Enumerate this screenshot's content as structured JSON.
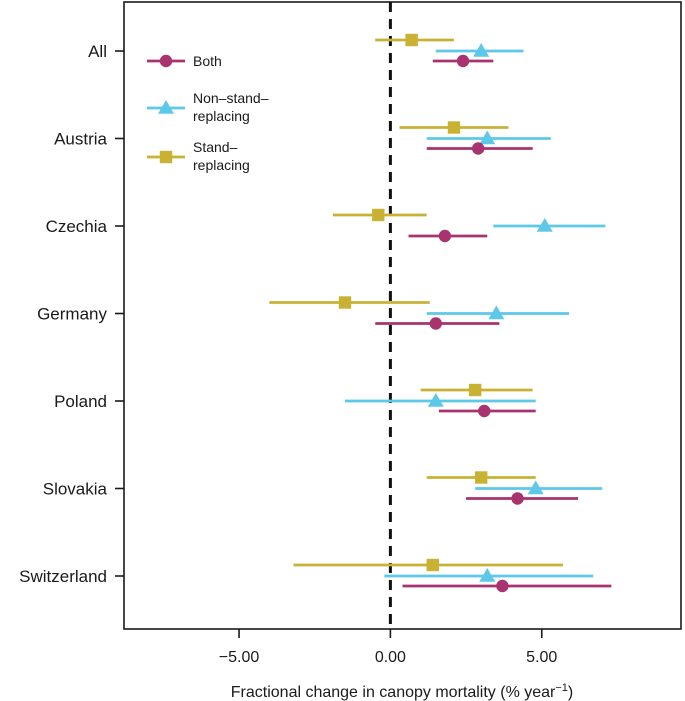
{
  "chart_data": {
    "type": "scatter",
    "subtype": "forest-plot-errorbars",
    "xlabel": "Fractional change in canopy mortality (% year−1)",
    "xlabel_main": "Fractional change in canopy mortality (% year",
    "xlabel_sup": "−1",
    "xlabel_close": ")",
    "xlim": [
      -8.8,
      9.6
    ],
    "xticks": [
      -5,
      0,
      5
    ],
    "xtick_labels": [
      "−5.00",
      "0.00",
      "5.00"
    ],
    "reference_line": 0,
    "categories": [
      "All",
      "Austria",
      "Czechia",
      "Germany",
      "Poland",
      "Slovakia",
      "Switzerland"
    ],
    "legend_position": "top-left",
    "series": [
      {
        "name": "Both",
        "color": "#a8336e",
        "marker": "circle",
        "points": [
          {
            "est": 2.4,
            "lo": 1.4,
            "hi": 3.4
          },
          {
            "est": 2.9,
            "lo": 1.2,
            "hi": 4.7
          },
          {
            "est": 1.8,
            "lo": 0.6,
            "hi": 3.2
          },
          {
            "est": 1.5,
            "lo": -0.5,
            "hi": 3.6
          },
          {
            "est": 3.1,
            "lo": 1.6,
            "hi": 4.8
          },
          {
            "est": 4.2,
            "lo": 2.5,
            "hi": 6.2
          },
          {
            "est": 3.7,
            "lo": 0.4,
            "hi": 7.3
          }
        ]
      },
      {
        "name": "Non–stand–replacing",
        "legend_lines": [
          "Non–stand–",
          "replacing"
        ],
        "color": "#5ec8e8",
        "marker": "triangle",
        "points": [
          {
            "est": 3.0,
            "lo": 1.5,
            "hi": 4.4
          },
          {
            "est": 3.2,
            "lo": 1.2,
            "hi": 5.3
          },
          {
            "est": 5.1,
            "lo": 3.4,
            "hi": 7.1
          },
          {
            "est": 3.5,
            "lo": 1.2,
            "hi": 5.9
          },
          {
            "est": 1.5,
            "lo": -1.5,
            "hi": 4.8
          },
          {
            "est": 4.8,
            "lo": 2.8,
            "hi": 7.0
          },
          {
            "est": 3.2,
            "lo": -0.2,
            "hi": 6.7
          }
        ]
      },
      {
        "name": "Stand–replacing",
        "legend_lines": [
          "Stand–",
          "replacing"
        ],
        "color": "#c9b233",
        "marker": "square",
        "points": [
          {
            "est": 0.7,
            "lo": -0.5,
            "hi": 2.1
          },
          {
            "est": 2.1,
            "lo": 0.3,
            "hi": 3.9
          },
          {
            "est": -0.4,
            "lo": -1.9,
            "hi": 1.2
          },
          {
            "est": -1.5,
            "lo": -4.0,
            "hi": 1.3
          },
          {
            "est": 2.8,
            "lo": 1.0,
            "hi": 4.7
          },
          {
            "est": 3.0,
            "lo": 1.2,
            "hi": 4.8
          },
          {
            "est": 1.4,
            "lo": -3.2,
            "hi": 5.7
          }
        ]
      }
    ]
  }
}
